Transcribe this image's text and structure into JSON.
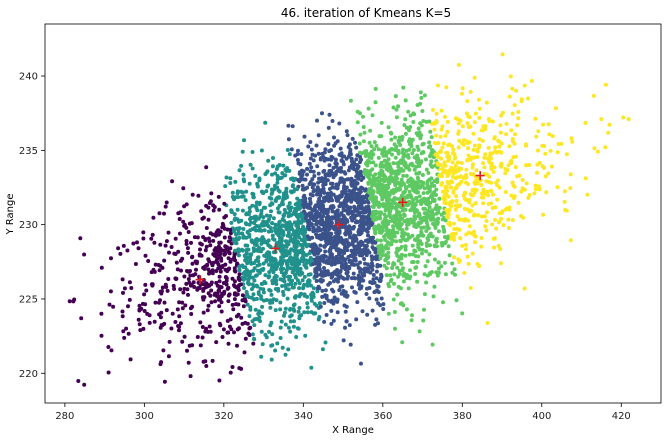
{
  "chart_data": {
    "type": "scatter",
    "title": "46. iteration of Kmeans K=5",
    "xlabel": "X Range",
    "ylabel": "Y Range",
    "xlim": [
      275,
      430
    ],
    "ylim": [
      218,
      243.5
    ],
    "xticks": [
      280,
      300,
      320,
      340,
      360,
      380,
      400,
      420
    ],
    "yticks": [
      220,
      225,
      230,
      235,
      240
    ],
    "grid": false,
    "legend": "none",
    "clusters": [
      {
        "color": "#440154",
        "x_range": [
          281,
          324
        ],
        "centroid": [
          314,
          226.3
        ],
        "count": 420
      },
      {
        "color": "#21918c",
        "x_range": [
          324,
          341
        ],
        "centroid": [
          333,
          228.4
        ],
        "count": 900
      },
      {
        "color": "#3b528b",
        "x_range": [
          341,
          357
        ],
        "centroid": [
          349,
          230.0
        ],
        "count": 1150
      },
      {
        "color": "#5ec962",
        "x_range": [
          357,
          375
        ],
        "centroid": [
          365,
          231.5
        ],
        "count": 1000
      },
      {
        "color": "#fde725",
        "x_range": [
          375,
          423
        ],
        "centroid": [
          384.5,
          233.3
        ],
        "count": 560
      }
    ],
    "centroid_marker": {
      "shape": "plus",
      "color": "#e41a1c"
    }
  }
}
